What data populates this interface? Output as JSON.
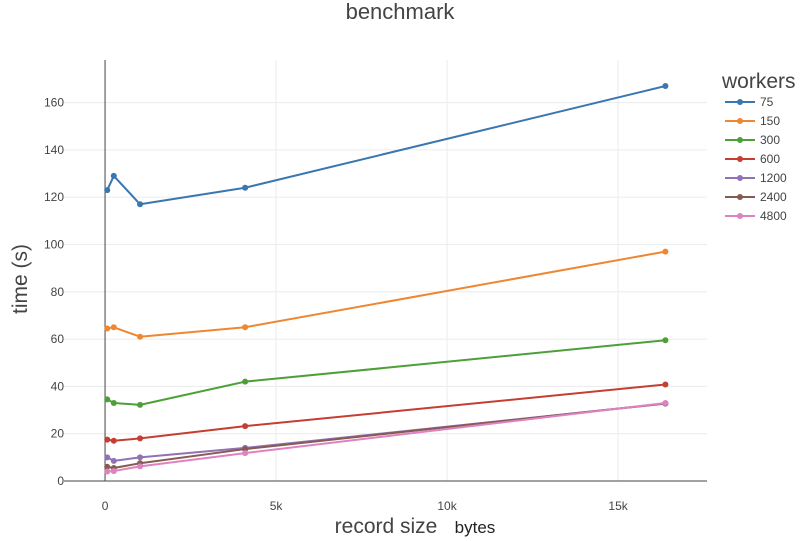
{
  "chart_data": {
    "type": "line",
    "title": "benchmark",
    "xlabel": "record size",
    "xlabel_unit": "bytes",
    "ylabel": "time (s)",
    "xlim": [
      -1200,
      17600
    ],
    "ylim": [
      0,
      178
    ],
    "x_ticks": [
      0,
      5000,
      10000,
      15000
    ],
    "x_tick_labels": [
      "0",
      "5k",
      "10k",
      "15k"
    ],
    "y_ticks": [
      0,
      20,
      40,
      60,
      80,
      100,
      120,
      140,
      160
    ],
    "y_tick_labels": [
      "0",
      "20",
      "40",
      "60",
      "80",
      "100",
      "120",
      "140",
      "160"
    ],
    "grid": true,
    "legend_title": "workers",
    "legend_position": "right",
    "x": [
      64,
      256,
      1024,
      4096,
      16384
    ],
    "series": [
      {
        "name": "75",
        "color": "#3a76af",
        "values": [
          123,
          129,
          117,
          124,
          167
        ]
      },
      {
        "name": "150",
        "color": "#ef8632",
        "values": [
          64.5,
          65,
          61,
          65,
          97
        ]
      },
      {
        "name": "300",
        "color": "#4d9f38",
        "values": [
          34.5,
          33,
          32.2,
          42,
          59.5
        ]
      },
      {
        "name": "600",
        "color": "#c63d32",
        "values": [
          17.5,
          17,
          18,
          23.2,
          40.8
        ]
      },
      {
        "name": "1200",
        "color": "#9271b4",
        "values": [
          10,
          8.5,
          10,
          14,
          32.7
        ]
      },
      {
        "name": "2400",
        "color": "#875b52",
        "values": [
          6,
          5.5,
          7.5,
          13.5,
          32.8
        ]
      },
      {
        "name": "4800",
        "color": "#df82c2",
        "values": [
          4,
          4.2,
          6.2,
          11.8,
          33
        ]
      }
    ]
  }
}
